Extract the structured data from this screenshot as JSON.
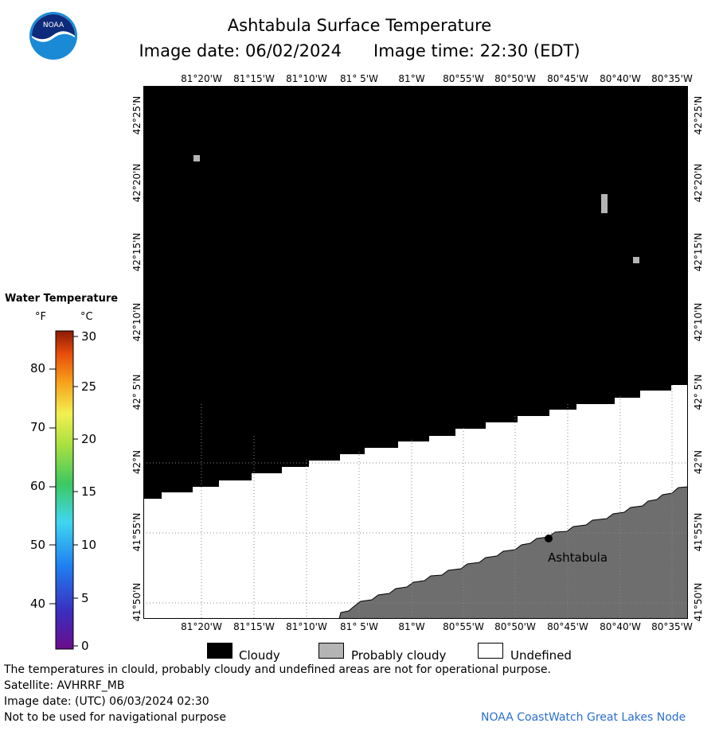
{
  "title": "Ashtabula Surface Temperature",
  "image_date_label": "Image date: 06/02/2024",
  "image_time_label": "Image time: 22:30 (EDT)",
  "logo_text": "NOAA",
  "longitude_labels": [
    "81°20'W",
    "81°15'W",
    "81°10'W",
    "81° 5'W",
    "81°W",
    "80°55'W",
    "80°50'W",
    "80°45'W",
    "80°40'W",
    "80°35'W"
  ],
  "latitude_labels": [
    "42°25'N",
    "42°20'N",
    "42°15'N",
    "42°10'N",
    "42° 5'N",
    "42°N",
    "41°55'N",
    "41°50'N"
  ],
  "place_label": "Ashtabula",
  "legend": {
    "title": "Water Temperature",
    "unit_f": "°F",
    "unit_c": "°C",
    "fahrenheit_ticks": [
      "80",
      "70",
      "60",
      "50",
      "40"
    ],
    "celsius_ticks": [
      "30",
      "25",
      "20",
      "15",
      "10",
      "5",
      "0"
    ]
  },
  "key": {
    "cloudy": "Cloudy",
    "probably_cloudy": "Probably cloudy",
    "undefined": "Undefined"
  },
  "footer": {
    "line1": "The temperatures in clould, probably cloudy and undefined areas are not for operational purpose.",
    "line2": "Satellite: AVHRRF_MB",
    "line3": "Image date: (UTC) 06/03/2024  02:30",
    "line4": "Not to be used for navigational purpose",
    "credit": "NOAA CoastWatch Great Lakes Node"
  },
  "colors": {
    "cloudy": "#000000",
    "probably_cloudy": "#b4b4b4",
    "land": "#6e6e6e",
    "undefined": "#ffffff",
    "credit": "#2a6fd0"
  }
}
